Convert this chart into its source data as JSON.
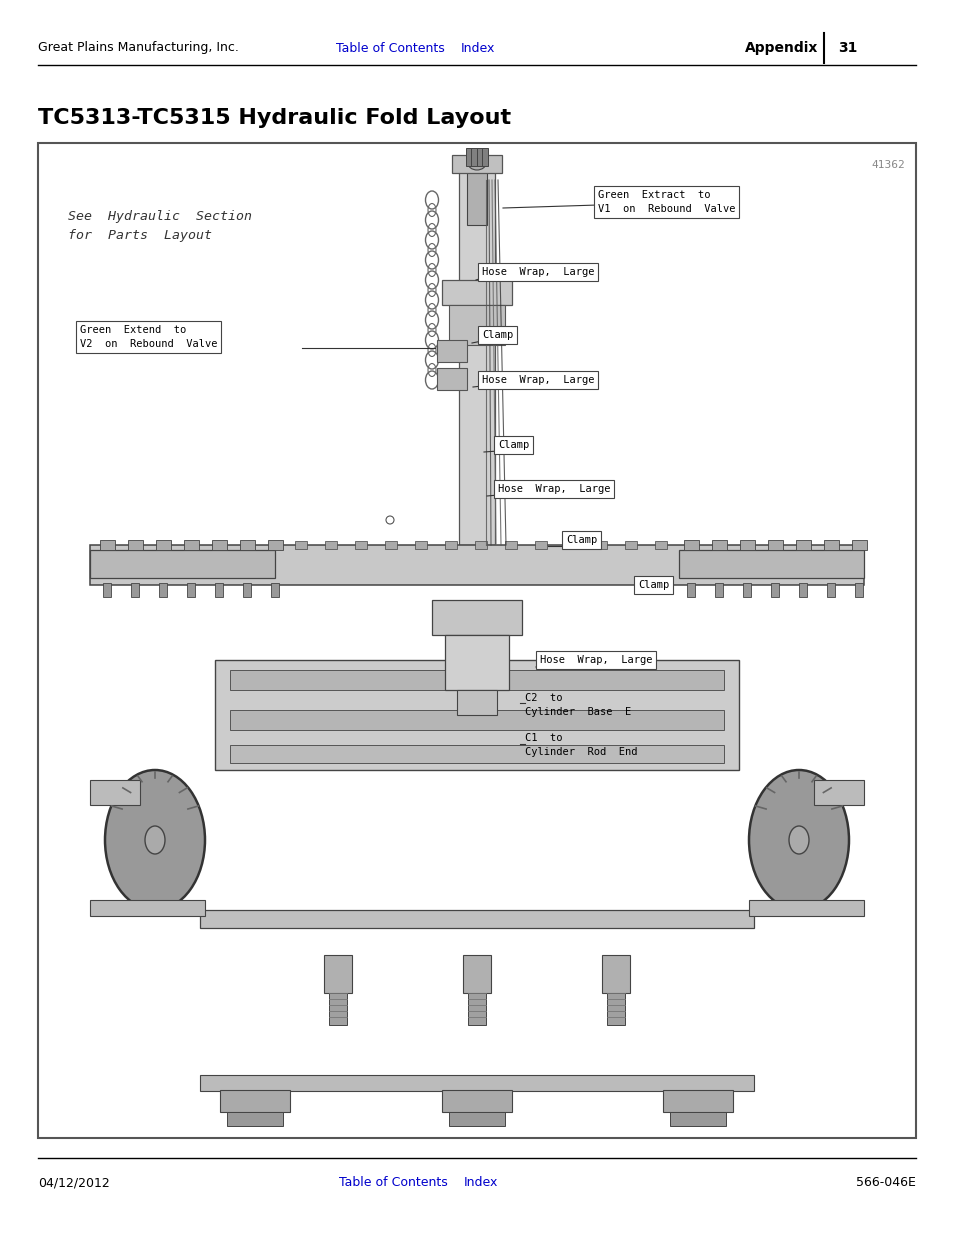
{
  "page_bg": "#ffffff",
  "header_left": "Great Plains Manufacturing, Inc.",
  "header_center_links": [
    "Table of Contents",
    "Index"
  ],
  "header_right_bold": "Appendix",
  "header_right_num": "31",
  "footer_left": "04/12/2012",
  "footer_center_links": [
    "Table of Contents",
    "Index"
  ],
  "footer_right": "566-046E",
  "section_title": "TC5313-TC5315 Hydraulic Fold Layout",
  "diagram_bg": "#ffffff",
  "diagram_border": "#555555",
  "figure_number": "41362",
  "see_hydraulic_text": "See  Hydraulic  Section\nfor  Parts  Layout",
  "link_color": "#0000cc",
  "line_color": "#000000",
  "title_fontsize": 16,
  "header_fontsize": 9,
  "footer_fontsize": 9,
  "label_fontsize": 7.5,
  "mono_fontfamily": "monospace"
}
